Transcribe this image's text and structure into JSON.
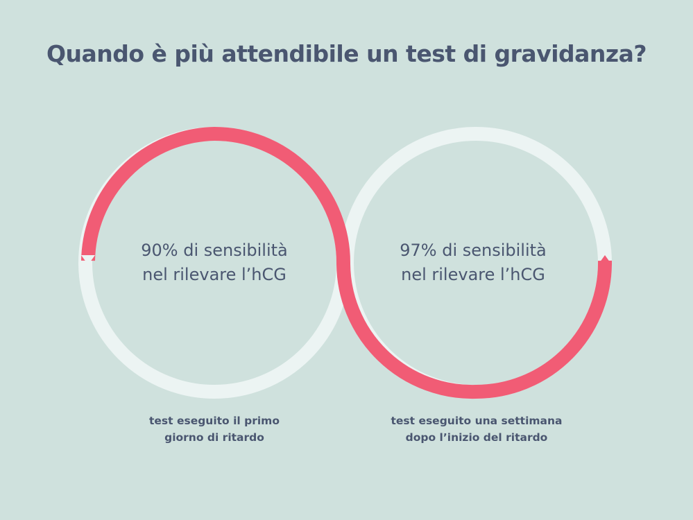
{
  "title": "Quando è più attendibile un test di gravidanza?",
  "colors": {
    "background": "#cfe1dd",
    "highlight": "#f15c75",
    "track": "#ecf4f3",
    "text": "#4a5670"
  },
  "left": {
    "sensitivity_percent": 90,
    "center_line1": "90% di sensibilità",
    "center_line2": "nel rilevare l’hCG",
    "caption_line1": "test eseguito il primo",
    "caption_line2": "giorno di ritardo"
  },
  "right": {
    "sensitivity_percent": 97,
    "center_line1": "97% di sensibilità",
    "center_line2": "nel rilevare l’hCG",
    "caption_line1": "test eseguito una settimana",
    "caption_line2": "dopo l’inizio del ritardo"
  }
}
